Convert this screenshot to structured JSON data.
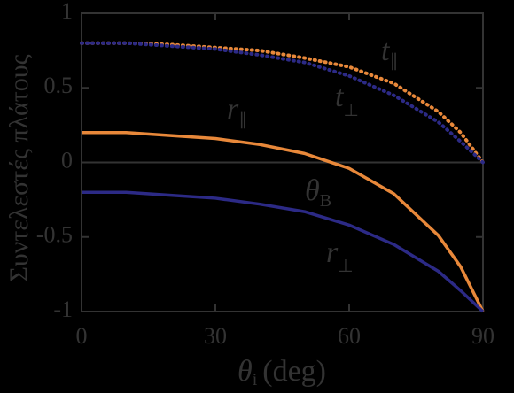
{
  "chart_data": {
    "type": "line",
    "x_label": {
      "symbol": "θ",
      "sub": "i",
      "text": "(deg)"
    },
    "y_label": "Συντελεστές πλάτους",
    "x": [
      0,
      10,
      20,
      30,
      40,
      50,
      60,
      70,
      80,
      85,
      90
    ],
    "series": [
      {
        "name": "t∥",
        "color": "#e8883a",
        "dash": "dotted",
        "values": [
          0.8,
          0.8,
          0.79,
          0.77,
          0.75,
          0.7,
          0.64,
          0.53,
          0.34,
          0.2,
          0
        ]
      },
      {
        "name": "t⊥",
        "color": "#2c2a86",
        "dash": "dotted",
        "values": [
          0.8,
          0.8,
          0.78,
          0.76,
          0.72,
          0.67,
          0.58,
          0.45,
          0.27,
          0.14,
          0
        ]
      },
      {
        "name": "r∥",
        "color": "#e8883a",
        "dash": "solid",
        "values": [
          0.2,
          0.2,
          0.18,
          0.16,
          0.12,
          0.06,
          -0.04,
          -0.21,
          -0.49,
          -0.7,
          -1
        ]
      },
      {
        "name": "r⊥",
        "color": "#2c2a86",
        "dash": "solid",
        "values": [
          -0.2,
          -0.2,
          -0.22,
          -0.24,
          -0.28,
          -0.33,
          -0.42,
          -0.55,
          -0.73,
          -0.86,
          -1
        ]
      }
    ],
    "annotations": [
      {
        "text": "t",
        "sub": "∥"
      },
      {
        "text": "t",
        "sub": "⊥"
      },
      {
        "text": "r",
        "sub": "∥"
      },
      {
        "text": "r",
        "sub": "⊥"
      },
      {
        "text": "θ",
        "sub": "B"
      }
    ],
    "xlim": [
      0,
      90
    ],
    "xticks": [
      0,
      30,
      60,
      90
    ],
    "ylim": [
      -1,
      1
    ],
    "yticks": [
      -1,
      -0.5,
      0,
      0.5,
      1
    ],
    "zero_line": true
  }
}
